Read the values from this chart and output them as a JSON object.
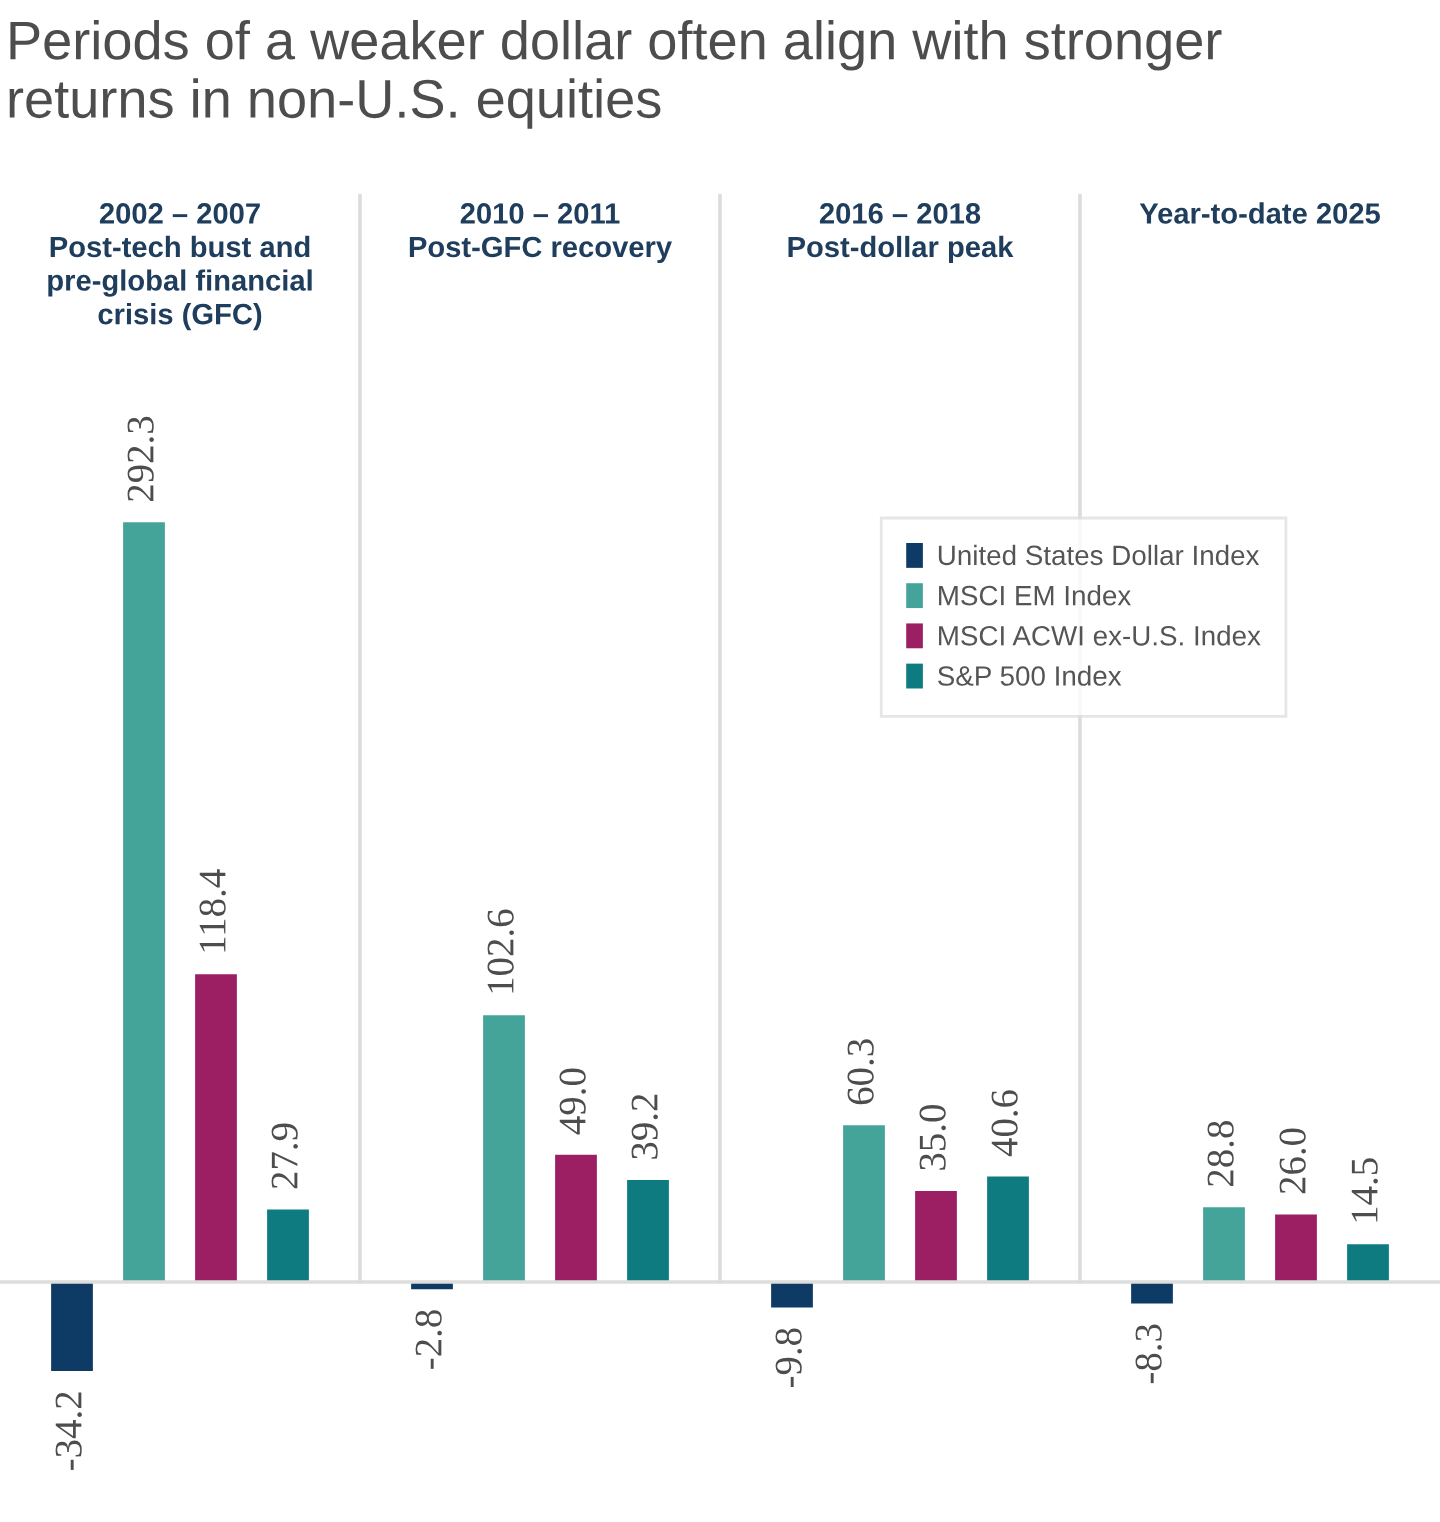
{
  "chart_data": {
    "type": "bar",
    "title": "Periods of a weaker dollar often align with stronger\nreturns in non-U.S. equities",
    "categories": [
      "2002 – 2007\nPost-tech bust and\npre-global financial\ncrisis (GFC)",
      "2010 – 2011\nPost-GFC recovery",
      "2016 – 2018\nPost-dollar peak",
      "Year-to-date 2025"
    ],
    "series": [
      {
        "name": "United States Dollar Index",
        "color": "#0e3a66",
        "values": [
          -34.2,
          -2.8,
          -9.8,
          -8.3
        ],
        "value_labels": [
          "-34.2",
          "-2.8",
          "-9.8",
          "-8.3"
        ]
      },
      {
        "name": "MSCI EM Index",
        "color": "#45a49a",
        "values": [
          292.3,
          102.6,
          60.3,
          28.8
        ],
        "value_labels": [
          "292.3",
          "102.6",
          "60.3",
          "28.8"
        ]
      },
      {
        "name": "MSCI ACWI ex-U.S. Index",
        "color": "#9c1f63",
        "values": [
          118.4,
          49.0,
          35.0,
          26.0
        ],
        "value_labels": [
          "118.4",
          "49.0",
          "35.0",
          "26.0"
        ]
      },
      {
        "name": "S&P 500 Index",
        "color": "#0d7b80",
        "values": [
          27.9,
          39.2,
          40.6,
          14.5
        ],
        "value_labels": [
          "27.9",
          "39.2",
          "40.6",
          "14.5"
        ]
      }
    ],
    "grid": "x",
    "legend": "top right"
  }
}
